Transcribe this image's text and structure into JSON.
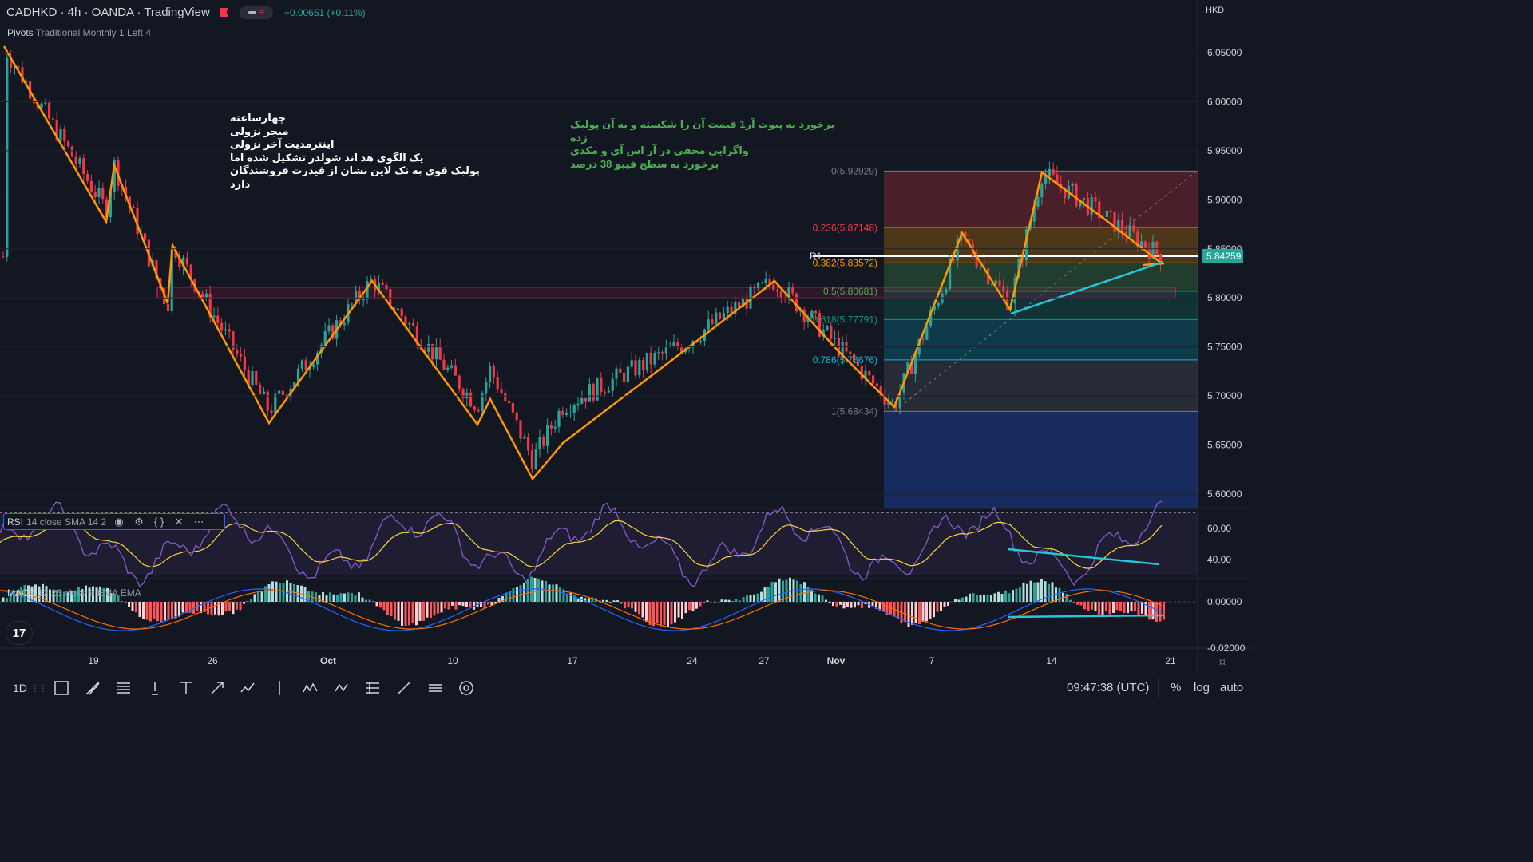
{
  "header": {
    "symbol_title": "CADHKD · 4h · OANDA · TradingView",
    "change": "+0.00651 (+0.11%)",
    "currency": "HKD"
  },
  "indicators": {
    "pivots": {
      "name": "Pivots",
      "params": "Traditional Monthly 1 Left 4"
    },
    "rsi": {
      "name": "RSI",
      "params": "14 close SMA 14 2"
    },
    "macd": {
      "name": "MACD",
      "params": "12 26 close 9 EMA EMA"
    }
  },
  "annotations": {
    "white": [
      "چهارساعته",
      "میجر نزولی",
      "اینترمدیت آخر نزولی",
      "یک الگوی هد اند شولدر تشکیل شده اما",
      "پولبک قوی به نک لاین نشان از قیدرت فروشندگان دارد"
    ],
    "green": [
      "برخورد به پیوت آر1 قیمت آن را شکسته و به آن پولبک زده",
      "واگرایی مخفی در آر اس آی و مکدی",
      "برخورد به سطح فیبو 38 درصد"
    ]
  },
  "chart_data": {
    "type": "candlestick",
    "price_axis": {
      "min": 5.6,
      "max": 6.05,
      "ticks": [
        "6.05000",
        "6.00000",
        "5.95000",
        "5.90000",
        "5.85000",
        "5.80000",
        "5.75000",
        "5.70000",
        "5.65000",
        "5.60000"
      ]
    },
    "current_price": {
      "value": 5.84259,
      "label": "5.84259",
      "color": "#26a69a"
    },
    "x_axis_labels": [
      {
        "label": "19",
        "bold": false
      },
      {
        "label": "26",
        "bold": false
      },
      {
        "label": "Oct",
        "bold": true
      },
      {
        "label": "10",
        "bold": false
      },
      {
        "label": "17",
        "bold": false
      },
      {
        "label": "24",
        "bold": false
      },
      {
        "label": "27",
        "bold": false
      },
      {
        "label": "Nov",
        "bold": true
      },
      {
        "label": "7",
        "bold": false
      },
      {
        "label": "14",
        "bold": false
      },
      {
        "label": "21",
        "bold": false
      }
    ],
    "pivot_R1": {
      "label": "R1",
      "value": 5.84259
    },
    "fibonacci": {
      "levels": [
        {
          "label": "0(5.92929)",
          "value": 5.92929,
          "color": "#787b86"
        },
        {
          "label": "0.236(5.87148)",
          "value": 5.87148,
          "color": "#f23645"
        },
        {
          "label": "0.382(5.83572)",
          "value": 5.83572,
          "color": "#ff9800"
        },
        {
          "label": "0.5(5.80681)",
          "value": 5.80681,
          "color": "#4caf50"
        },
        {
          "label": "0.618(5.77791)",
          "value": 5.77791,
          "color": "#089981"
        },
        {
          "label": "0.786(5.73676)",
          "value": 5.73676,
          "color": "#00bcd4"
        },
        {
          "label": "1(5.68434)",
          "value": 5.68434,
          "color": "#787b86"
        }
      ]
    },
    "zigzag_color": "#ff9800",
    "up_color": "#26a69a",
    "down_color": "#f23645",
    "neckline_zone": {
      "top": 5.811,
      "bottom": 5.8
    },
    "rsi": {
      "ticks": [
        "60.00",
        "40.00"
      ],
      "ylim": [
        30,
        70
      ],
      "line_color": "#7e57c2",
      "sma_color": "#fdd835"
    },
    "macd": {
      "ticks": [
        "0.00000",
        "-0.02000"
      ]
    }
  },
  "toolbar": {
    "timeframe": "1D",
    "tools": [
      "crosshair-tool",
      "trend-line-tool",
      "fib-tool",
      "brush-tool",
      "text-tool",
      "arrow-tool",
      "pattern-tool",
      "vertical-line-tool",
      "xabcd-tool",
      "abcd-tool",
      "long-position-tool",
      "ruler-tool",
      "parallel-channel-tool",
      "magnet-tool"
    ],
    "clock": "09:47:38 (UTC)",
    "percent_label": "%",
    "log_label": "log",
    "auto_label": "auto"
  }
}
